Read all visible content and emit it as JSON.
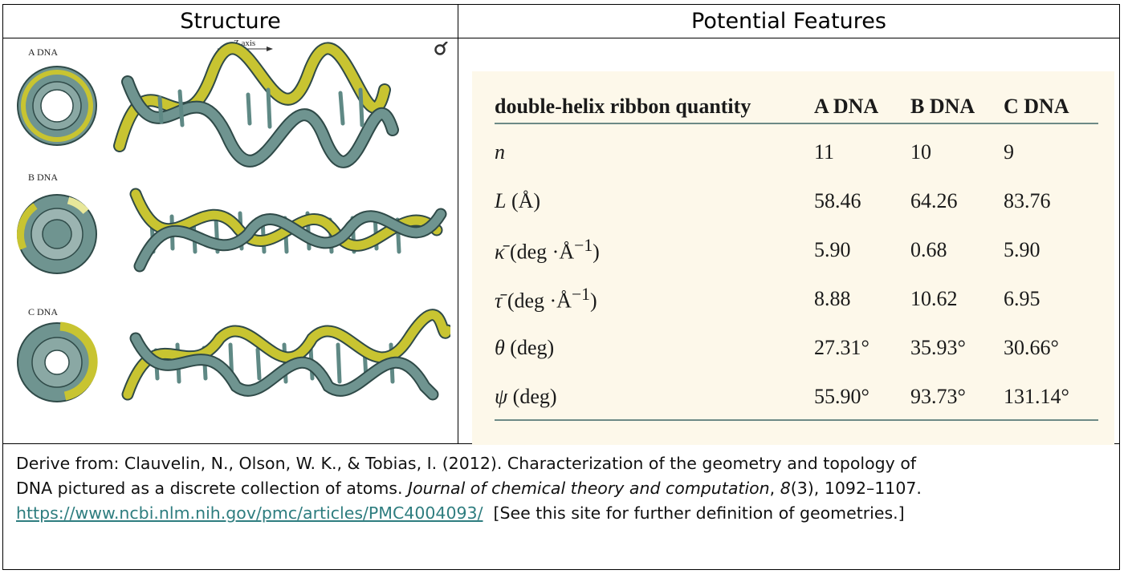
{
  "headers": {
    "structure": "Structure",
    "features": "Potential Features"
  },
  "figure": {
    "z_axis_label": "Z axis",
    "labels": [
      "A DNA",
      "B DNA",
      "C DNA"
    ],
    "colors": {
      "strand_teal": "#5f8985",
      "strand_yellow": "#c8c431",
      "outline": "#2f4a48"
    }
  },
  "table": {
    "columns": [
      "double-helix ribbon quantity",
      "A DNA",
      "B DNA",
      "C DNA"
    ],
    "rows": [
      {
        "symbol": "n",
        "unit": "",
        "values": [
          "11",
          "10",
          "9"
        ]
      },
      {
        "symbol": "L",
        "unit": "(Å)",
        "values": [
          "58.46",
          "64.26",
          "83.76"
        ]
      },
      {
        "symbol": "κ̄",
        "unit": "(deg ·Å",
        "sup": "−1",
        "close": ")",
        "values": [
          "5.90",
          "0.68",
          "5.90"
        ]
      },
      {
        "symbol": "τ̄",
        "unit": "(deg ·Å",
        "sup": "−1",
        "close": ")",
        "values": [
          "8.88",
          "10.62",
          "6.95"
        ]
      },
      {
        "symbol": "θ",
        "unit": "(deg)",
        "values": [
          "27.31°",
          "35.93°",
          "30.66°"
        ]
      },
      {
        "symbol": "ψ",
        "unit": "(deg)",
        "values": [
          "55.90°",
          "93.73°",
          "131.14°"
        ]
      }
    ],
    "colors": {
      "panel_bg": "#fdf8ea",
      "rule": "#6d8a86"
    }
  },
  "caption": {
    "line1": "Derive from: Clauvelin, N., Olson, W. K., & Tobias, I. (2012). Characterization of the geometry and topology of",
    "line2_pre": "DNA pictured as a discrete collection of atoms. ",
    "journal": "Journal of chemical theory and computation",
    "sep": ", ",
    "volume": "8",
    "line2_post": "(3), 1092–1107.",
    "url": "https://www.ncbi.nlm.nih.gov/pmc/articles/PMC4004093/",
    "note": "  [See this site for further definition of geometries.]"
  }
}
